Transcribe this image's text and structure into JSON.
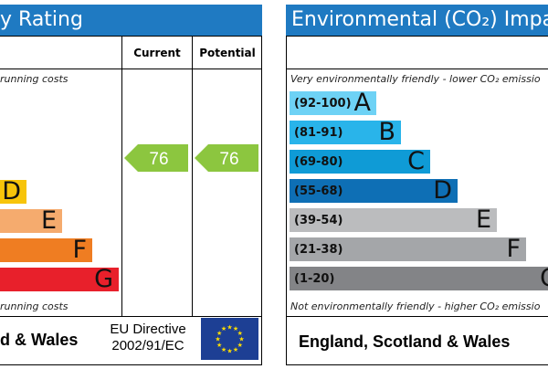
{
  "chart_data": [
    {
      "type": "bar",
      "title": "y Rating",
      "columns": [
        "Current",
        "Potential"
      ],
      "top_note": "running costs",
      "bottom_note": "running costs",
      "bands": [
        {
          "letter": "D",
          "color": "#f7c40a",
          "width_fraction": 0.22
        },
        {
          "letter": "E",
          "color": "#f5ab6e",
          "width_fraction": 0.52
        },
        {
          "letter": "F",
          "color": "#ef7d22",
          "width_fraction": 0.78
        },
        {
          "letter": "G",
          "color": "#e8202b",
          "width_fraction": 1.0
        }
      ],
      "current_value": 76,
      "potential_value": 76,
      "indicator_color": "#8cc63f",
      "footer_region": "d & Wales",
      "footer_directive_line1": "EU Directive",
      "footer_directive_line2": "2002/91/EC"
    },
    {
      "type": "bar",
      "title": "Environmental (CO₂) Impac",
      "top_note": "Very environmentally friendly - lower CO₂ emissio",
      "bottom_note": "Not environmentally friendly - higher CO₂ emissio",
      "bands": [
        {
          "range": "(92-100)",
          "letter": "A",
          "color": "#6ed2f5",
          "width_fraction": 0.35
        },
        {
          "range": "(81-91)",
          "letter": "B",
          "color": "#29b4ea",
          "width_fraction": 0.45
        },
        {
          "range": "(69-80)",
          "letter": "C",
          "color": "#0f9bd6",
          "width_fraction": 0.57
        },
        {
          "range": "(55-68)",
          "letter": "D",
          "color": "#0e6fb5",
          "width_fraction": 0.68
        },
        {
          "range": "(39-54)",
          "letter": "E",
          "color": "#bbbcbe",
          "width_fraction": 0.84
        },
        {
          "range": "(21-38)",
          "letter": "F",
          "color": "#a4a6a9",
          "width_fraction": 0.96
        },
        {
          "range": "(1-20)",
          "letter": "G",
          "color": "#838487",
          "width_fraction": 1.1
        }
      ],
      "footer_region": "England, Scotland & Wales"
    }
  ]
}
